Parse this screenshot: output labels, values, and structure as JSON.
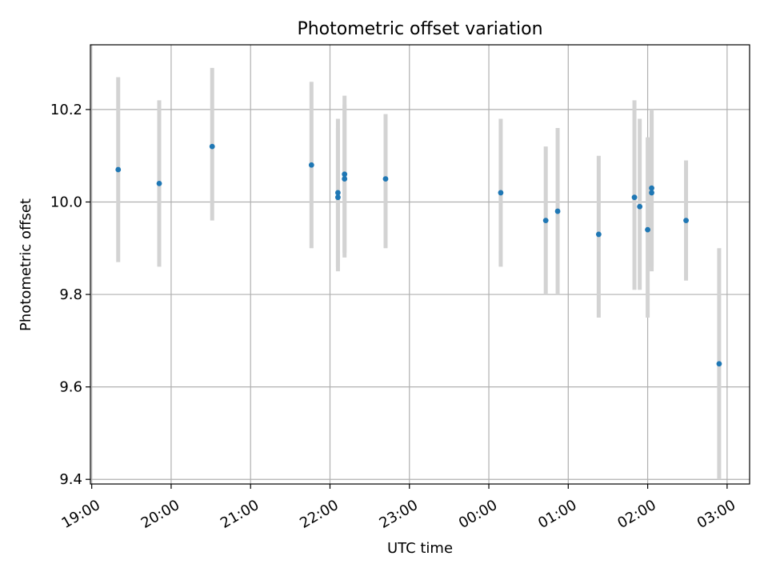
{
  "chart_data": {
    "type": "scatter",
    "title": "Photometric offset variation",
    "xlabel": "UTC time",
    "ylabel": "Photometric offset",
    "x_axis": {
      "ticks": [
        0,
        60,
        120,
        180,
        240,
        300,
        360,
        420,
        480
      ],
      "tick_labels": [
        "19:00",
        "20:00",
        "21:00",
        "22:00",
        "23:00",
        "00:00",
        "01:00",
        "02:00",
        "03:00"
      ],
      "range": [
        -1,
        497
      ]
    },
    "y_axis": {
      "ticks": [
        9.4,
        9.6,
        9.8,
        10.0,
        10.2
      ],
      "tick_labels": [
        "9.4",
        "9.6",
        "9.8",
        "10.0",
        "10.2"
      ],
      "range": [
        9.39,
        10.34
      ]
    },
    "grid": true,
    "colors": {
      "point": "#1f77b4",
      "errorbar": "#d3d3d3",
      "grid": "#b0b0b0"
    },
    "points": [
      {
        "t": "19:20",
        "y": 10.07,
        "lo": 9.87,
        "hi": 10.27
      },
      {
        "t": "19:51",
        "y": 10.04,
        "lo": 9.86,
        "hi": 10.22
      },
      {
        "t": "20:31",
        "y": 10.12,
        "lo": 9.96,
        "hi": 10.29
      },
      {
        "t": "21:46",
        "y": 10.08,
        "lo": 9.9,
        "hi": 10.26
      },
      {
        "t": "22:06",
        "y": 10.02,
        "lo": 9.86,
        "hi": 10.18
      },
      {
        "t": "22:06",
        "y": 10.01,
        "lo": 9.85,
        "hi": 10.16
      },
      {
        "t": "22:11",
        "y": 10.06,
        "lo": 9.89,
        "hi": 10.23
      },
      {
        "t": "22:11",
        "y": 10.05,
        "lo": 9.88,
        "hi": 10.21
      },
      {
        "t": "22:42",
        "y": 10.05,
        "lo": 9.9,
        "hi": 10.19
      },
      {
        "t": "00:09",
        "y": 10.02,
        "lo": 9.86,
        "hi": 10.18
      },
      {
        "t": "00:43",
        "y": 9.96,
        "lo": 9.8,
        "hi": 10.12
      },
      {
        "t": "00:52",
        "y": 9.98,
        "lo": 9.8,
        "hi": 10.16
      },
      {
        "t": "01:23",
        "y": 9.93,
        "lo": 9.75,
        "hi": 10.1
      },
      {
        "t": "01:50",
        "y": 10.01,
        "lo": 9.81,
        "hi": 10.22
      },
      {
        "t": "01:54",
        "y": 9.99,
        "lo": 9.81,
        "hi": 10.18
      },
      {
        "t": "02:00",
        "y": 9.94,
        "lo": 9.75,
        "hi": 10.14
      },
      {
        "t": "02:03",
        "y": 10.03,
        "lo": 9.85,
        "hi": 10.2
      },
      {
        "t": "02:03",
        "y": 10.02,
        "lo": 9.86,
        "hi": 10.19
      },
      {
        "t": "02:29",
        "y": 9.96,
        "lo": 9.83,
        "hi": 10.09
      },
      {
        "t": "02:54",
        "y": 9.65,
        "lo": 9.4,
        "hi": 9.9
      }
    ]
  }
}
